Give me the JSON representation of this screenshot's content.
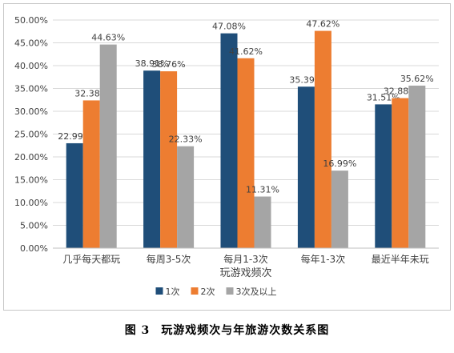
{
  "figure_caption": {
    "number": "图 3",
    "title": "玩游戏频次与年旅游次数关系图"
  },
  "chart_data": {
    "type": "bar",
    "title": "",
    "xlabel": "玩游戏频次",
    "ylabel": "",
    "ylim": [
      0,
      50
    ],
    "ytick_step": 5,
    "ytick_format": "percent_2dp",
    "grid": true,
    "legend_position": "bottom",
    "categories": [
      "几乎每天都玩",
      "每周3-5次",
      "每月1-3次",
      "每年1-3次",
      "最近半年未玩"
    ],
    "series": [
      {
        "name": "1次",
        "color": "#1f4e79",
        "values": [
          22.99,
          38.91,
          47.08,
          35.39,
          31.51
        ],
        "labels": [
          "22.99%",
          "38.91%",
          "47.08%",
          "35.39%",
          "31.51%"
        ]
      },
      {
        "name": "2次",
        "color": "#ed7d31",
        "values": [
          32.38,
          38.76,
          41.62,
          47.62,
          32.88
        ],
        "labels": [
          "32.38%",
          "38.76%",
          "41.62%",
          "47.62%",
          "32.88%"
        ]
      },
      {
        "name": "3次及以上",
        "color": "#a5a5a5",
        "values": [
          44.63,
          22.33,
          11.31,
          16.99,
          35.62
        ],
        "labels": [
          "44.63%",
          "22.33%",
          "11.31%",
          "16.99%",
          "35.62%"
        ]
      }
    ]
  }
}
